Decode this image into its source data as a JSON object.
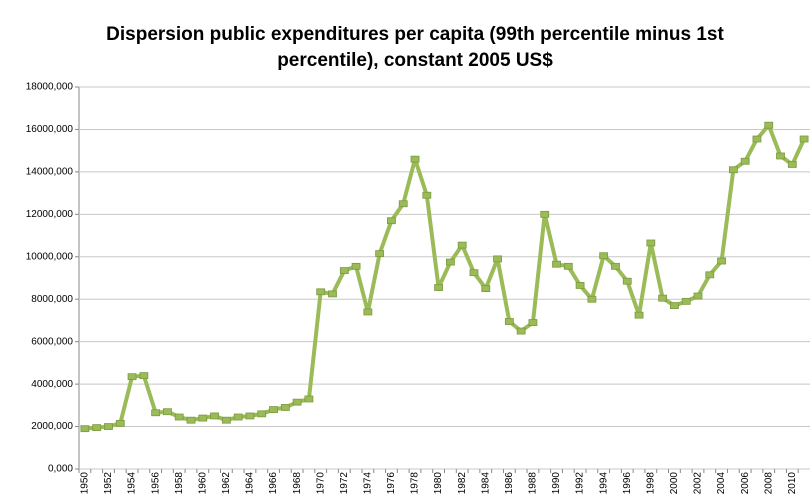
{
  "chart_data": {
    "type": "line",
    "title": "Dispersion public expenditures per capita (99th percentile minus 1st percentile), constant 2005 US$",
    "categories": [
      "1950",
      null,
      "1952",
      null,
      "1954",
      null,
      "1956",
      null,
      "1958",
      null,
      "1960",
      null,
      "1962",
      null,
      "1964",
      null,
      "1966",
      null,
      "1968",
      null,
      "1970",
      null,
      "1972",
      null,
      "1974",
      null,
      "1976",
      null,
      "1978",
      null,
      "1980",
      null,
      "1982",
      null,
      "1984",
      null,
      "1986",
      null,
      "1988",
      null,
      "1990",
      null,
      "1992",
      null,
      "1994",
      null,
      "1996",
      null,
      "1998",
      null,
      "2000",
      null,
      "2002",
      null,
      "2004",
      null,
      "2006",
      null,
      "2008",
      null,
      "2010",
      null
    ],
    "series": [
      {
        "color": "#9bbb59",
        "values": [
          1900,
          1950,
          2000,
          2150,
          4350,
          4400,
          2650,
          2700,
          2450,
          2300,
          2400,
          2500,
          2300,
          2450,
          2500,
          2600,
          2800,
          2900,
          3150,
          3300,
          8350,
          8250,
          9350,
          9550,
          7400,
          10150,
          11700,
          12500,
          14600,
          12900,
          8550,
          9750,
          10550,
          9250,
          8500,
          9900,
          6950,
          6500,
          6900,
          12000,
          9650,
          9550,
          8650,
          8000,
          10050,
          9550,
          8850,
          7250,
          10650,
          8050,
          7700,
          7900,
          8150,
          9150,
          9800,
          14100,
          14500,
          15550,
          16200,
          14750,
          14350,
          15550
        ]
      }
    ],
    "ylim": [
      0,
      18000
    ],
    "yticks": [
      {
        "value": 0,
        "label": "0,000"
      },
      {
        "value": 2000,
        "label": "2000,000"
      },
      {
        "value": 4000,
        "label": "4000,000"
      },
      {
        "value": 6000,
        "label": "6000,000"
      },
      {
        "value": 8000,
        "label": "8000,000"
      },
      {
        "value": 10000,
        "label": "10000,000"
      },
      {
        "value": 12000,
        "label": "12000,000"
      },
      {
        "value": 14000,
        "label": "14000,000"
      },
      {
        "value": 16000,
        "label": "16000,000"
      },
      {
        "value": 18000,
        "label": "18000,000"
      }
    ],
    "grid": true
  }
}
